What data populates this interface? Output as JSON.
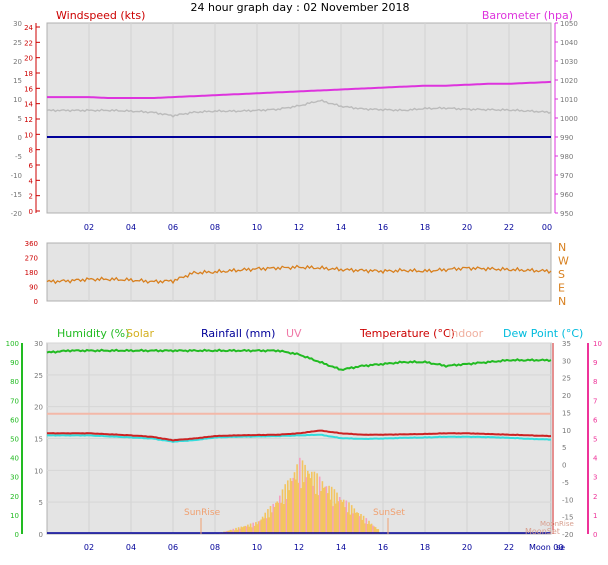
{
  "title": "24 hour graph day : 02 November 2018",
  "colors": {
    "wind": "#cc0000",
    "wind_gust": "#bbbbbb",
    "baro": "#dd33dd",
    "dir": "#d8801f",
    "humidity": "#22bb22",
    "solar": "#e8c020",
    "rain": "#000099",
    "uv": "#f07aa8",
    "temp": "#cc2222",
    "indoor": "#f3b8a8",
    "dew": "#33dddd",
    "plot_bg": "#e4e4e4",
    "label_temp": "#cc0000",
    "label_dew": "#00bbdd",
    "label_indoor": "#f0b0a0",
    "axis_green": "#22bb22",
    "axis_pink": "#ee3399",
    "time_axis": "#000099",
    "sun": "#f0a070",
    "moon": "#d8a090"
  },
  "time_labels": [
    "02",
    "04",
    "06",
    "08",
    "10",
    "12",
    "14",
    "16",
    "18",
    "20",
    "22",
    "00"
  ],
  "panel1": {
    "left_title": "Windspeed (kts)",
    "right_title": "Barometer (hpa)",
    "left_ticks": [
      "30",
      "25",
      "20",
      "15",
      "10",
      "5",
      "0",
      "-5",
      "-10",
      "-15",
      "-20"
    ],
    "left_red_ticks": [
      "24",
      "22",
      "20",
      "18",
      "16",
      "14",
      "12",
      "10",
      "8",
      "6",
      "4",
      "2",
      "0"
    ],
    "right_ticks": [
      "1050",
      "1040",
      "1030",
      "1020",
      "1010",
      "1000",
      "990",
      "980",
      "970",
      "960",
      "950"
    ]
  },
  "panel2": {
    "left_ticks": [
      "360",
      "270",
      "180",
      "90",
      "0"
    ],
    "right_labels": [
      "N",
      "W",
      "S",
      "E",
      "N"
    ]
  },
  "panel3": {
    "humidity_label": "Humidity (%)",
    "solar_label": "Solar",
    "rain_label": "Rainfall (mm)",
    "uv_label": "UV",
    "temp_label": "Temperature (°C)",
    "indoor_label": "Indoor",
    "dew_label": "Dew Point (°C)",
    "left_ticks": [
      "100",
      "90",
      "80",
      "70",
      "60",
      "50",
      "40",
      "30",
      "20",
      "10",
      "0"
    ],
    "inner_ticks": [
      "30",
      "25",
      "20",
      "15",
      "10",
      "5",
      "0"
    ],
    "right_temp_ticks": [
      "35",
      "30",
      "25",
      "20",
      "15",
      "10",
      "5",
      "0",
      "-5",
      "-10",
      "-15",
      "-20"
    ],
    "right_uv_ticks": [
      "10",
      "9",
      "8",
      "7",
      "6",
      "5",
      "4",
      "3",
      "2",
      "1",
      "0"
    ],
    "sunrise": "SunRise",
    "sunset": "SunSet",
    "moonset": "MoonSet",
    "moonrise": "MoonRise",
    "moon_bottom": "Moon 00",
    "moon_bottom_tail": "se"
  },
  "chart_data": [
    {
      "type": "line",
      "title": "24 hour graph day : 02 November 2018",
      "x": [
        0,
        1,
        2,
        3,
        4,
        5,
        6,
        7,
        8,
        9,
        10,
        11,
        12,
        13,
        14,
        15,
        16,
        17,
        18,
        19,
        20,
        21,
        22,
        23,
        24
      ],
      "xticks": [
        "02",
        "04",
        "06",
        "08",
        "10",
        "12",
        "14",
        "16",
        "18",
        "20",
        "22",
        "00"
      ],
      "series": [
        {
          "name": "Windspeed (kts)",
          "values": [
            0,
            0,
            0,
            0,
            0,
            0,
            0,
            0,
            0,
            0,
            0,
            0,
            0,
            0,
            0,
            0,
            0,
            0,
            0,
            0,
            0,
            0,
            0,
            0,
            0
          ]
        },
        {
          "name": "Barometer (hpa)",
          "values": [
            1011,
            1011,
            1011,
            1010.5,
            1010.5,
            1010.5,
            1011,
            1011.5,
            1012,
            1012.5,
            1013,
            1013.5,
            1014,
            1014.5,
            1015,
            1015.5,
            1016,
            1016.5,
            1017,
            1017,
            1017.5,
            1018,
            1018,
            1018.5,
            1019
          ]
        },
        {
          "name": "gust",
          "values": [
            7,
            7,
            7,
            7,
            6.8,
            6.5,
            5.6,
            6.5,
            6.8,
            6.8,
            7,
            7.3,
            8.2,
            9.6,
            8.1,
            7.4,
            7.2,
            7,
            7.5,
            7.6,
            7.3,
            7.2,
            7.1,
            6.8,
            6.5
          ]
        }
      ],
      "ylim_left": [
        -20,
        30
      ],
      "ylim_right": [
        950,
        1050
      ]
    },
    {
      "type": "line",
      "x": [
        0,
        1,
        2,
        3,
        4,
        5,
        6,
        7,
        8,
        9,
        10,
        11,
        12,
        13,
        14,
        15,
        16,
        17,
        18,
        19,
        20,
        21,
        22,
        23,
        24
      ],
      "series": [
        {
          "name": "Wind direction",
          "values": [
            120,
            125,
            135,
            135,
            130,
            120,
            125,
            175,
            180,
            190,
            200,
            205,
            210,
            205,
            195,
            190,
            185,
            190,
            185,
            195,
            205,
            200,
            195,
            190,
            185
          ]
        }
      ],
      "ylim": [
        0,
        360
      ]
    },
    {
      "type": "line",
      "x": [
        0,
        1,
        2,
        3,
        4,
        5,
        6,
        7,
        8,
        9,
        10,
        11,
        12,
        13,
        14,
        15,
        16,
        17,
        18,
        19,
        20,
        21,
        22,
        23,
        24
      ],
      "series": [
        {
          "name": "Humidity (%)",
          "values": [
            95,
            96,
            96,
            96,
            96,
            96,
            96,
            96,
            96,
            96,
            96,
            96,
            94,
            90,
            86,
            88,
            89,
            90,
            90,
            88,
            89,
            90,
            91,
            91,
            91
          ]
        },
        {
          "name": "Temperature (°C)",
          "values": [
            9,
            9,
            9,
            8.7,
            8.4,
            8,
            7,
            7.5,
            8.2,
            8.4,
            8.5,
            8.6,
            9,
            9.8,
            9,
            8.6,
            8.6,
            8.7,
            8.8,
            9,
            9,
            8.8,
            8.6,
            8.4,
            8.2
          ]
        },
        {
          "name": "Dew Point (°C)",
          "values": [
            8.4,
            8.4,
            8.4,
            8.1,
            7.8,
            7.5,
            6.6,
            7,
            7.8,
            8,
            8.1,
            8.2,
            8.4,
            8.6,
            7.6,
            7.4,
            7.5,
            7.7,
            7.8,
            8,
            8,
            7.9,
            7.7,
            7.4,
            7.2
          ]
        },
        {
          "name": "Indoor",
          "values": [
            14.6,
            14.6,
            14.6,
            14.6,
            14.6,
            14.6,
            14.6,
            14.6,
            14.6,
            14.6,
            14.6,
            14.6,
            14.6,
            14.6,
            14.6,
            14.6,
            14.6,
            14.6,
            14.6,
            14.6,
            14.6,
            14.6,
            14.6,
            14.6,
            14.6
          ]
        },
        {
          "name": "Solar",
          "values": [
            0,
            0,
            0,
            0,
            0,
            0,
            0,
            0,
            0,
            1,
            2,
            6,
            12,
            9,
            6,
            3,
            0,
            0,
            0,
            0,
            0,
            0,
            0,
            0,
            0
          ]
        },
        {
          "name": "Rainfall (mm)",
          "values": [
            0,
            0,
            0,
            0,
            0,
            0,
            0,
            0,
            0,
            0,
            0,
            0,
            0,
            0,
            0,
            0,
            0,
            0,
            0,
            0,
            0,
            0,
            0,
            0,
            0
          ]
        }
      ],
      "ylim_humidity": [
        0,
        100
      ],
      "ylim_temp": [
        -20,
        35
      ]
    }
  ]
}
